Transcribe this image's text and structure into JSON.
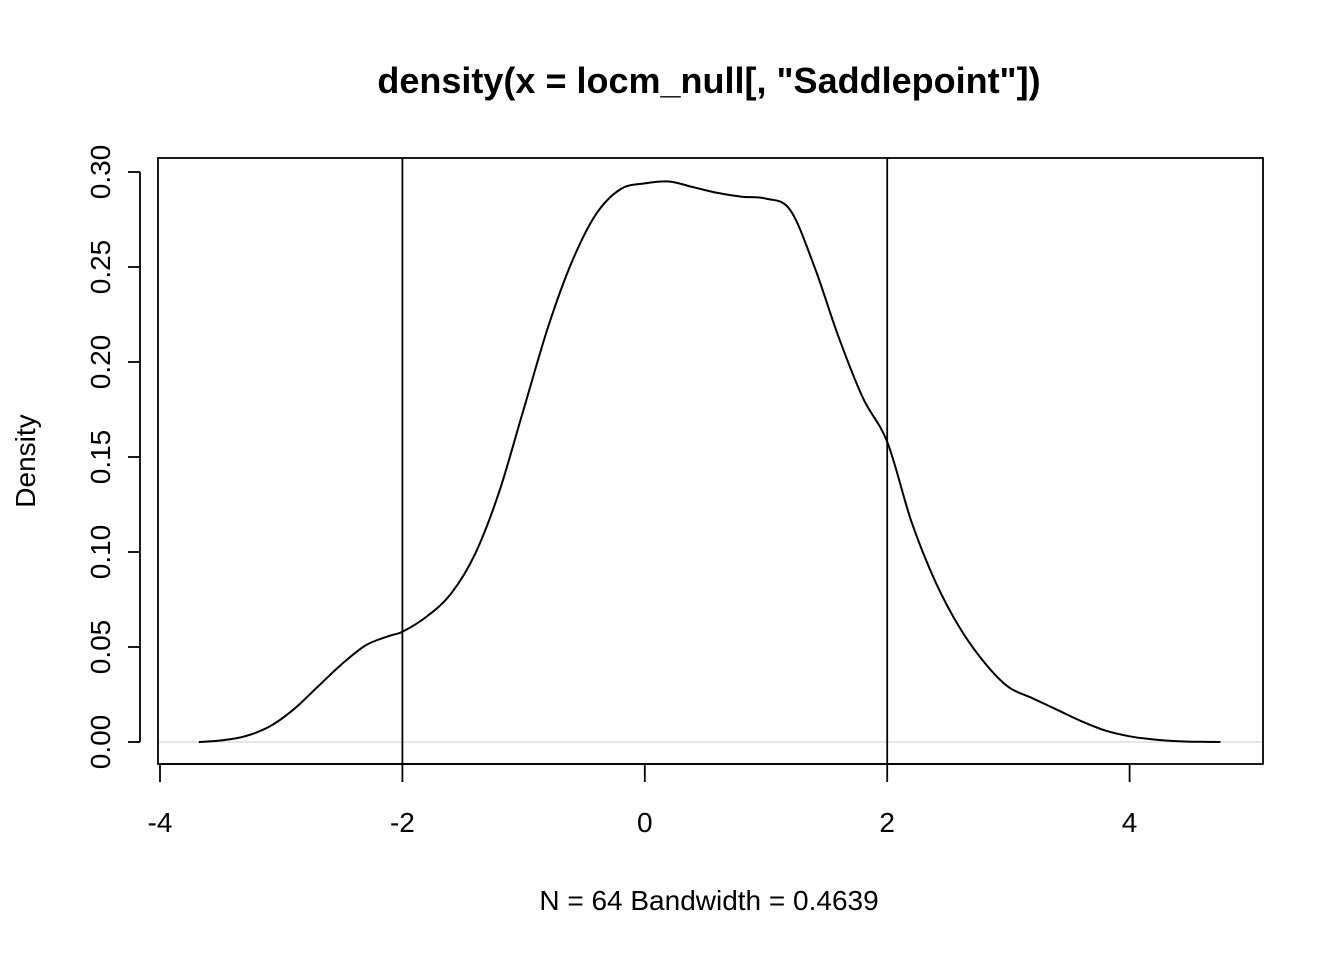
{
  "chart_data": {
    "type": "line",
    "title": "density(x = locm_null[, \"Saddlepoint\"])",
    "xlabel": "N = 64   Bandwidth = 0.4639",
    "ylabel": "Density",
    "xlim": [
      -4,
      5
    ],
    "ylim": [
      0,
      0.3
    ],
    "x_ticks": [
      -4,
      -2,
      0,
      2,
      4
    ],
    "x_tick_labels": [
      "-4",
      "-2",
      "0",
      "2",
      "4"
    ],
    "y_ticks": [
      0,
      0.05,
      0.1,
      0.15,
      0.2,
      0.25,
      0.3
    ],
    "y_tick_labels": [
      "0.00",
      "0.05",
      "0.10",
      "0.15",
      "0.20",
      "0.25",
      "0.30"
    ],
    "grid": false,
    "baseline_y": 0,
    "vertical_lines_x": [
      -2,
      2
    ],
    "series": [
      {
        "color": "#000000",
        "x": [
          -3.68,
          -3.5,
          -3.3,
          -3.1,
          -2.9,
          -2.7,
          -2.5,
          -2.3,
          -2.1,
          -2.0,
          -1.8,
          -1.6,
          -1.4,
          -1.2,
          -1.0,
          -0.8,
          -0.6,
          -0.4,
          -0.2,
          0.0,
          0.2,
          0.4,
          0.6,
          0.8,
          1.0,
          1.2,
          1.4,
          1.6,
          1.8,
          2.0,
          2.2,
          2.4,
          2.6,
          2.8,
          3.0,
          3.2,
          3.4,
          3.6,
          3.8,
          4.0,
          4.2,
          4.4,
          4.6,
          4.75
        ],
        "y": [
          0.0,
          0.0008,
          0.003,
          0.008,
          0.017,
          0.029,
          0.041,
          0.051,
          0.056,
          0.058,
          0.066,
          0.078,
          0.099,
          0.132,
          0.175,
          0.218,
          0.253,
          0.278,
          0.291,
          0.294,
          0.295,
          0.292,
          0.289,
          0.287,
          0.286,
          0.28,
          0.25,
          0.213,
          0.181,
          0.158,
          0.116,
          0.084,
          0.06,
          0.042,
          0.029,
          0.023,
          0.017,
          0.011,
          0.006,
          0.003,
          0.0013,
          0.0004,
          0.0001,
          0.0
        ]
      }
    ]
  }
}
